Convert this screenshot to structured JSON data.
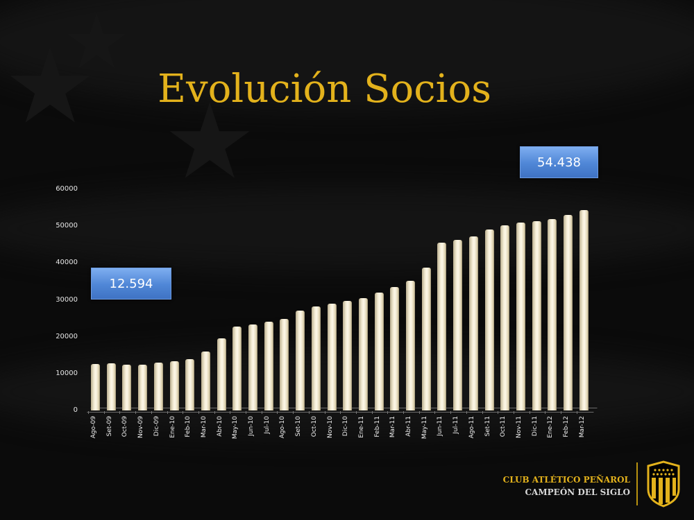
{
  "slide": {
    "title": "Evolución Socios",
    "callouts": {
      "start": "12.594",
      "end": "54.438"
    },
    "brand": {
      "line1": "CLUB ATLÉTICO PEÑAROL",
      "line2": "CAMPEÓN DEL SIGLO",
      "crest_icon": "club-crest-icon",
      "colors": {
        "gold": "#e3b21c",
        "black": "#000000"
      }
    },
    "y_ticks": [
      "60000",
      "50000",
      "40000",
      "30000",
      "20000",
      "10000",
      "0"
    ]
  },
  "chart_data": {
    "type": "bar",
    "title": "Evolución Socios",
    "xlabel": "",
    "ylabel": "",
    "ylim": [
      0,
      60000
    ],
    "yticks": [
      0,
      10000,
      20000,
      30000,
      40000,
      50000,
      60000
    ],
    "grid": false,
    "legend": "none",
    "categories": [
      "Ago-09",
      "Set-09",
      "Oct-09",
      "Nov-09",
      "Dic-09",
      "Ene-10",
      "Feb-10",
      "Mar-10",
      "Abr-10",
      "May-10",
      "Jun-10",
      "Jul-10",
      "Ago-10",
      "Set-10",
      "Oct-10",
      "Nov-10",
      "Dic-10",
      "Ene-11",
      "Feb-11",
      "Mar-11",
      "Abr-11",
      "May-11",
      "Jun-11",
      "Jul-11",
      "Ago-11",
      "Set-11",
      "Oct-11",
      "Nov-11",
      "Dic-11",
      "Ene-12",
      "Feb-12",
      "Mar-12"
    ],
    "values": [
      12594,
      12800,
      12400,
      12500,
      13000,
      13300,
      13900,
      16000,
      19600,
      22800,
      23300,
      24000,
      24800,
      27000,
      28300,
      29000,
      29800,
      30500,
      32000,
      33400,
      35200,
      38800,
      45500,
      46200,
      47200,
      49000,
      50200,
      51000,
      51400,
      52000,
      53000,
      54438
    ],
    "annotations": [
      {
        "text": "12.594",
        "target": "Ago-09"
      },
      {
        "text": "54.438",
        "target": "Mar-12"
      }
    ],
    "bar_color": "#f4ecd4"
  }
}
